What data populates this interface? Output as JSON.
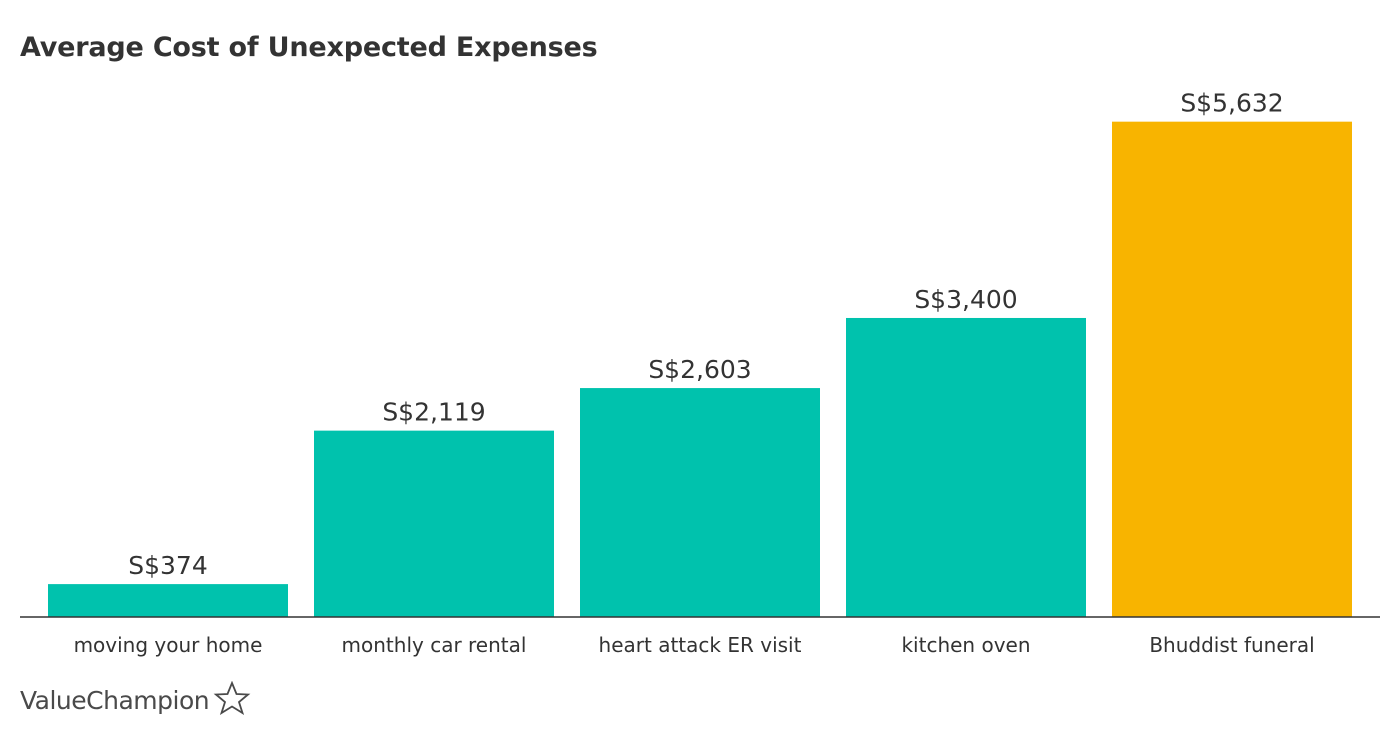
{
  "chart_data": {
    "type": "bar",
    "title": "Average Cost of Unexpected Expenses",
    "categories": [
      "moving your home",
      "monthly car rental",
      "heart attack ER visit",
      "kitchen oven",
      "Bhuddist funeral"
    ],
    "values": [
      374,
      2119,
      2603,
      3400,
      5632
    ],
    "value_labels": [
      "S$374",
      "S$2,119",
      "S$2,603",
      "S$3,400",
      "S$5,632"
    ],
    "xlabel": "",
    "ylabel": "",
    "ylim": [
      0,
      6000
    ],
    "grid": false,
    "legend": "none",
    "colors": [
      "#00c2ad",
      "#00c2ad",
      "#00c2ad",
      "#00c2ad",
      "#f8b400"
    ]
  },
  "colors": {
    "bar": "#00c2ad",
    "highlight": "#f8b400",
    "axis": "#333333",
    "text": "#333333"
  },
  "brand": {
    "name": "ValueChampion",
    "icon": "star-outline-icon"
  }
}
